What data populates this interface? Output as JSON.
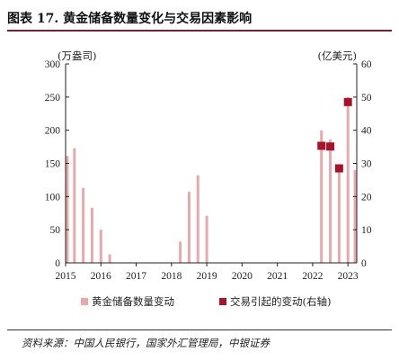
{
  "figure": {
    "title": "图表 17. 黄金储备数量变化与交易因素影响",
    "source": "资料来源：中国人民银行，国家外汇管理局，中银证券"
  },
  "chart_data": {
    "type": "bar",
    "x_axis": {
      "ticks": [
        "2015",
        "2016",
        "2017",
        "2018",
        "2019",
        "2020",
        "2021",
        "2022",
        "2023"
      ],
      "range": [
        2015,
        2023.25
      ]
    },
    "y_left": {
      "unit_label": "(万盎司)",
      "range": [
        0,
        300
      ],
      "ticks": [
        "0",
        "50",
        "100",
        "150",
        "200",
        "250",
        "300"
      ]
    },
    "y_right": {
      "unit_label": "(亿美元)",
      "range": [
        0,
        60
      ],
      "ticks": [
        "0",
        "10",
        "20",
        "30",
        "40",
        "50",
        "60"
      ]
    },
    "series": [
      {
        "name": "黄金储备数量变动",
        "kind": "bar",
        "axis": "left",
        "color": "#e8a9ad",
        "points": [
          {
            "x": 2015.05,
            "y": 161
          },
          {
            "x": 2015.25,
            "y": 173
          },
          {
            "x": 2015.5,
            "y": 113
          },
          {
            "x": 2015.75,
            "y": 83
          },
          {
            "x": 2016.0,
            "y": 50
          },
          {
            "x": 2016.25,
            "y": 13
          },
          {
            "x": 2018.25,
            "y": 32
          },
          {
            "x": 2018.5,
            "y": 107
          },
          {
            "x": 2018.75,
            "y": 132
          },
          {
            "x": 2019.0,
            "y": 71
          },
          {
            "x": 2022.25,
            "y": 200
          },
          {
            "x": 2022.5,
            "y": 186
          },
          {
            "x": 2022.75,
            "y": 145
          },
          {
            "x": 2023.0,
            "y": 250
          },
          {
            "x": 2023.2,
            "y": 140
          }
        ]
      },
      {
        "name": "交易引起的变动(右轴)",
        "kind": "marker",
        "axis": "right",
        "color": "#a8122a",
        "points": [
          {
            "x": 2022.25,
            "y": 35.3
          },
          {
            "x": 2022.5,
            "y": 35.1
          },
          {
            "x": 2022.75,
            "y": 28.5
          },
          {
            "x": 2023.0,
            "y": 48.5
          }
        ]
      }
    ],
    "legend": {
      "position": "bottom"
    }
  }
}
